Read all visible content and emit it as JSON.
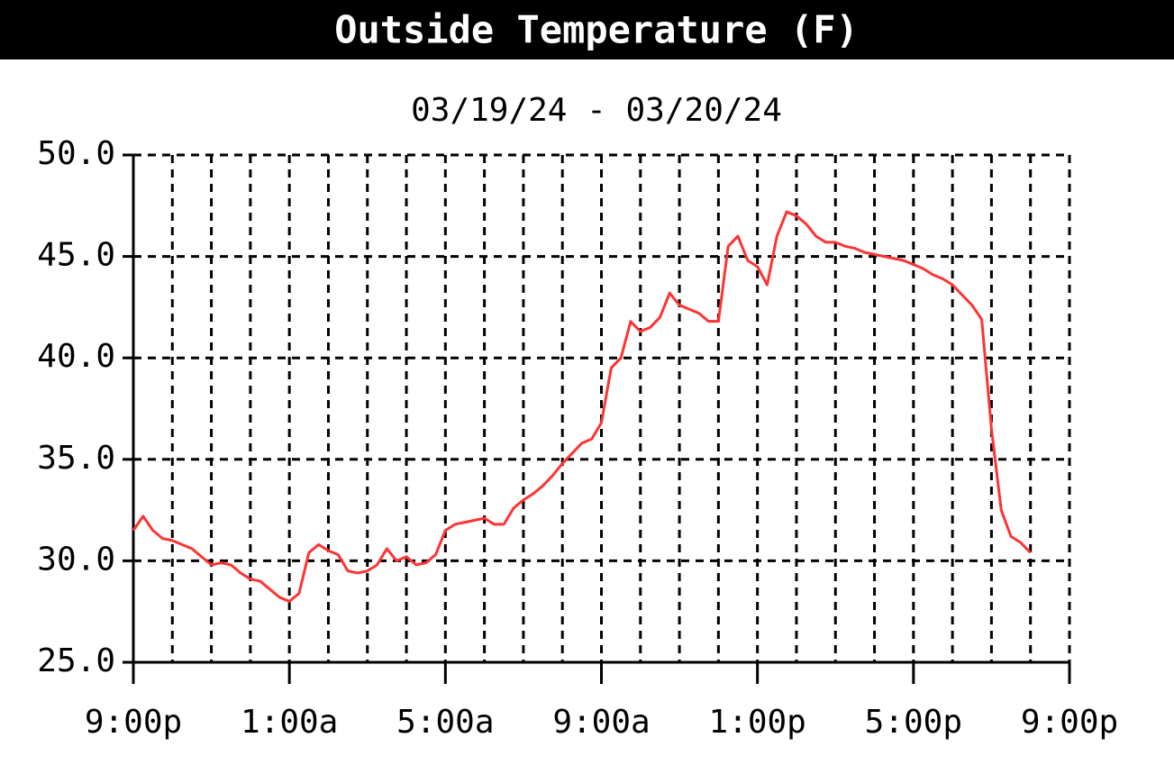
{
  "chart_data": {
    "type": "line",
    "title": "Outside Temperature (F)",
    "subtitle": "03/19/24 - 03/20/24",
    "x": [
      0,
      0.25,
      0.5,
      0.75,
      1,
      1.25,
      1.5,
      1.75,
      2,
      2.25,
      2.5,
      2.75,
      3,
      3.25,
      3.5,
      3.75,
      4,
      4.25,
      4.5,
      4.75,
      5,
      5.25,
      5.5,
      5.75,
      6,
      6.25,
      6.5,
      6.75,
      7,
      7.25,
      7.5,
      7.75,
      8,
      8.25,
      8.5,
      8.75,
      9,
      9.25,
      9.5,
      9.75,
      10,
      10.25,
      10.5,
      10.75,
      11,
      11.25,
      11.5,
      11.75,
      12,
      12.25,
      12.5,
      12.75,
      13,
      13.25,
      13.5,
      13.75,
      14,
      14.25,
      14.5,
      14.75,
      15,
      15.25,
      15.5,
      15.75,
      16,
      16.25,
      16.5,
      16.75,
      17,
      17.25,
      17.5,
      17.75,
      18,
      18.25,
      18.5,
      18.75,
      19,
      19.25,
      19.5,
      19.75,
      20,
      20.25,
      20.5,
      20.75,
      21,
      21.25,
      21.5,
      21.75,
      22,
      22.25,
      22.5,
      22.75,
      23
    ],
    "series": [
      {
        "color": "#ff3333",
        "values": [
          31.5,
          32.2,
          31.5,
          31.1,
          31.0,
          30.8,
          30.6,
          30.2,
          29.8,
          29.9,
          29.8,
          29.4,
          29.1,
          29.0,
          28.6,
          28.2,
          28.0,
          28.4,
          30.4,
          30.8,
          30.5,
          30.3,
          29.5,
          29.4,
          29.5,
          29.8,
          30.6,
          30.0,
          30.2,
          29.8,
          29.9,
          30.3,
          31.5,
          31.8,
          31.9,
          32.0,
          32.1,
          31.8,
          31.8,
          32.6,
          33.0,
          33.3,
          33.7,
          34.2,
          34.8,
          35.3,
          35.8,
          36.0,
          36.8,
          39.5,
          40.0,
          41.8,
          41.3,
          41.5,
          42.0,
          43.2,
          42.6,
          42.4,
          42.2,
          41.8,
          41.8,
          45.5,
          46.0,
          44.8,
          44.5,
          43.6,
          46.0,
          47.2,
          47.0,
          46.6,
          46.0,
          45.7,
          45.7,
          45.5,
          45.4,
          45.2,
          45.1,
          45.0,
          44.9,
          44.8,
          44.6,
          44.4,
          44.1,
          43.9,
          43.6,
          43.1,
          42.6,
          41.9,
          36.5,
          32.5,
          31.2,
          30.9,
          30.4
        ]
      }
    ],
    "xlim": [
      0,
      24
    ],
    "xticks": [
      {
        "value": 0,
        "label": "9:00p"
      },
      {
        "value": 4,
        "label": "1:00a"
      },
      {
        "value": 8,
        "label": "5:00a"
      },
      {
        "value": 12,
        "label": "9:00a"
      },
      {
        "value": 16,
        "label": "1:00p"
      },
      {
        "value": 20,
        "label": "5:00p"
      },
      {
        "value": 24,
        "label": "9:00p"
      }
    ],
    "minor_xticks": [
      1,
      2,
      3,
      4,
      5,
      6,
      7,
      8,
      9,
      10,
      11,
      12,
      13,
      14,
      15,
      16,
      17,
      18,
      19,
      20,
      21,
      22,
      23,
      24
    ],
    "ylim": [
      25,
      50
    ],
    "yticks": [
      {
        "value": 25,
        "label": "25.0"
      },
      {
        "value": 30,
        "label": "30.0"
      },
      {
        "value": 35,
        "label": "35.0"
      },
      {
        "value": 40,
        "label": "40.0"
      },
      {
        "value": 45,
        "label": "45.0"
      },
      {
        "value": 50,
        "label": "50.0"
      }
    ],
    "grid": true
  }
}
